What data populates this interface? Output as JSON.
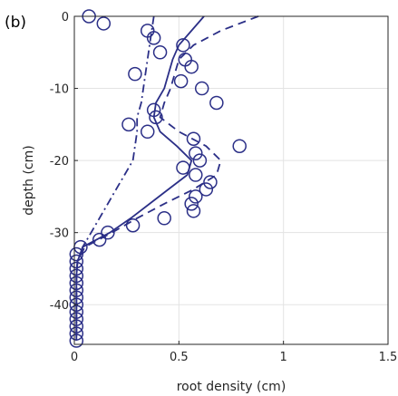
{
  "panel_label": "(b)",
  "chart_data": {
    "type": "line",
    "xlabel": "root density (cm)",
    "ylabel": "depth (cm)",
    "xlim": [
      0,
      1.5
    ],
    "ylim": [
      -45.5,
      0
    ],
    "xticks": [
      0,
      0.5,
      1,
      1.5
    ],
    "xtick_labels": [
      "0",
      "0.5",
      "1",
      "1.5"
    ],
    "yticks": [
      0,
      -10,
      -20,
      -30,
      -40
    ],
    "ytick_labels": [
      "0",
      "-10",
      "-20",
      "-30",
      "-40"
    ],
    "grid": true,
    "color": "#2b2f87",
    "series": [
      {
        "kind": "markers",
        "marker": "circle",
        "points": [
          [
            0.07,
            0
          ],
          [
            0.14,
            -1
          ],
          [
            0.35,
            -2
          ],
          [
            0.38,
            -3
          ],
          [
            0.41,
            -5
          ],
          [
            0.52,
            -4
          ],
          [
            0.53,
            -6
          ],
          [
            0.56,
            -7
          ],
          [
            0.29,
            -8
          ],
          [
            0.51,
            -9
          ],
          [
            0.61,
            -10
          ],
          [
            0.68,
            -12
          ],
          [
            0.38,
            -13
          ],
          [
            0.39,
            -14
          ],
          [
            0.26,
            -15
          ],
          [
            0.35,
            -16
          ],
          [
            0.57,
            -17
          ],
          [
            0.79,
            -18
          ],
          [
            0.58,
            -19
          ],
          [
            0.6,
            -20
          ],
          [
            0.52,
            -21
          ],
          [
            0.58,
            -22
          ],
          [
            0.65,
            -23
          ],
          [
            0.63,
            -24
          ],
          [
            0.58,
            -25
          ],
          [
            0.56,
            -26
          ],
          [
            0.57,
            -27
          ],
          [
            0.43,
            -28
          ],
          [
            0.28,
            -29
          ],
          [
            0.16,
            -30
          ],
          [
            0.12,
            -31
          ],
          [
            0.03,
            -32
          ],
          [
            0.01,
            -33
          ],
          [
            0.01,
            -34
          ],
          [
            0.01,
            -35
          ],
          [
            0.01,
            -36
          ],
          [
            0.01,
            -37
          ],
          [
            0.01,
            -38
          ],
          [
            0.01,
            -39
          ],
          [
            0.01,
            -40
          ],
          [
            0.01,
            -41
          ],
          [
            0.01,
            -42
          ],
          [
            0.01,
            -43
          ],
          [
            0.01,
            -44
          ],
          [
            0.01,
            -45
          ]
        ]
      },
      {
        "kind": "solid",
        "points": [
          [
            0.62,
            0
          ],
          [
            0.56,
            -2
          ],
          [
            0.5,
            -4
          ],
          [
            0.47,
            -6
          ],
          [
            0.45,
            -8
          ],
          [
            0.43,
            -10
          ],
          [
            0.39,
            -12
          ],
          [
            0.38,
            -14
          ],
          [
            0.41,
            -16
          ],
          [
            0.49,
            -18
          ],
          [
            0.56,
            -20
          ],
          [
            0.54,
            -22
          ],
          [
            0.45,
            -24
          ],
          [
            0.36,
            -26
          ],
          [
            0.27,
            -28
          ],
          [
            0.17,
            -30
          ],
          [
            0.04,
            -32
          ],
          [
            0.015,
            -34
          ],
          [
            0.01,
            -36
          ],
          [
            0.01,
            -40
          ],
          [
            0.01,
            -45
          ]
        ]
      },
      {
        "kind": "dashed",
        "points": [
          [
            0.88,
            0
          ],
          [
            0.7,
            -2
          ],
          [
            0.57,
            -4
          ],
          [
            0.5,
            -6
          ],
          [
            0.48,
            -8
          ],
          [
            0.46,
            -10
          ],
          [
            0.43,
            -12
          ],
          [
            0.41,
            -14
          ],
          [
            0.5,
            -16
          ],
          [
            0.63,
            -18
          ],
          [
            0.7,
            -20
          ],
          [
            0.68,
            -22
          ],
          [
            0.57,
            -24
          ],
          [
            0.43,
            -26
          ],
          [
            0.3,
            -28
          ],
          [
            0.18,
            -30
          ],
          [
            0.05,
            -32
          ],
          [
            0.015,
            -34
          ],
          [
            0.01,
            -36
          ],
          [
            0.01,
            -40
          ],
          [
            0.01,
            -45
          ]
        ]
      },
      {
        "kind": "dashdot",
        "points": [
          [
            0.38,
            0
          ],
          [
            0.37,
            -2
          ],
          [
            0.36,
            -4
          ],
          [
            0.35,
            -6
          ],
          [
            0.34,
            -8
          ],
          [
            0.33,
            -10
          ],
          [
            0.32,
            -12
          ],
          [
            0.3,
            -14
          ],
          [
            0.3,
            -16
          ],
          [
            0.29,
            -18
          ],
          [
            0.28,
            -20
          ],
          [
            0.24,
            -22
          ],
          [
            0.2,
            -24
          ],
          [
            0.16,
            -26
          ],
          [
            0.12,
            -28
          ],
          [
            0.08,
            -30
          ],
          [
            0.04,
            -32
          ],
          [
            0.015,
            -34
          ],
          [
            0.01,
            -36
          ],
          [
            0.01,
            -40
          ],
          [
            0.01,
            -45
          ]
        ]
      }
    ]
  }
}
